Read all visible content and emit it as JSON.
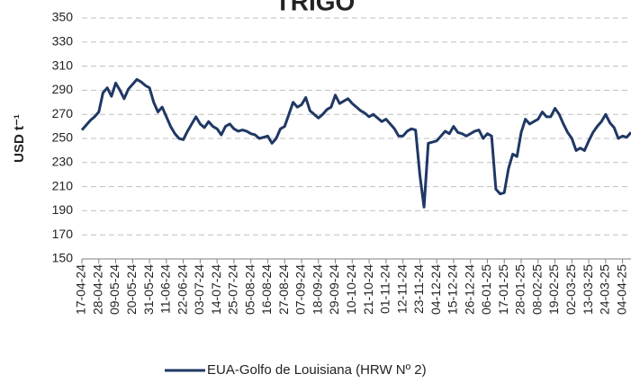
{
  "chart_data": {
    "type": "line",
    "title": "TRIGO",
    "ylabel": "USD t⁻¹",
    "categories": [
      "17-04-24",
      null,
      null,
      null,
      "28-04-24",
      null,
      null,
      null,
      "09-05-24",
      null,
      null,
      null,
      "20-05-24",
      null,
      null,
      null,
      "31-05-24",
      null,
      null,
      null,
      "11-06-24",
      null,
      null,
      null,
      "22-06-24",
      null,
      null,
      null,
      "03-07-24",
      null,
      null,
      null,
      "14-07-24",
      null,
      null,
      null,
      "25-07-24",
      null,
      null,
      null,
      "05-08-24",
      null,
      null,
      null,
      "16-08-24",
      null,
      null,
      null,
      "27-08-24",
      null,
      null,
      null,
      "07-09-24",
      null,
      null,
      null,
      "18-09-24",
      null,
      null,
      null,
      "29-09-24",
      null,
      null,
      null,
      "10-10-24",
      null,
      null,
      null,
      "21-10-24",
      null,
      null,
      null,
      "01-11-24",
      null,
      null,
      null,
      "12-11-24",
      null,
      null,
      null,
      "23-11-24",
      null,
      null,
      null,
      "04-12-24",
      null,
      null,
      null,
      "15-12-24",
      null,
      null,
      null,
      "26-12-24",
      null,
      null,
      null,
      "06-01-25",
      null,
      null,
      null,
      "17-01-25",
      null,
      null,
      null,
      "28-01-25",
      null,
      null,
      null,
      "08-02-25",
      null,
      null,
      null,
      "19-02-25",
      null,
      null,
      null,
      "02-03-25",
      null,
      null,
      null,
      "13-03-25",
      null,
      null,
      null,
      "24-03-25",
      null,
      null,
      null,
      "04-04-25",
      null,
      null
    ],
    "series": [
      {
        "name": "EUA-Golfo de Louisiana (HRW Nº 2)",
        "color": "#1f3864",
        "values": [
          257,
          261,
          265,
          268,
          272,
          288,
          292,
          285,
          296,
          290,
          283,
          291,
          295,
          299,
          297,
          294,
          292,
          280,
          272,
          276,
          268,
          260,
          254,
          250,
          249,
          256,
          262,
          268,
          262,
          259,
          264,
          260,
          258,
          253,
          260,
          262,
          258,
          256,
          257,
          256,
          254,
          253,
          250,
          251,
          252,
          246,
          250,
          258,
          260,
          270,
          280,
          276,
          278,
          284,
          273,
          270,
          267,
          270,
          274,
          276,
          286,
          279,
          281,
          283,
          279,
          276,
          273,
          271,
          268,
          270,
          267,
          264,
          266,
          262,
          258,
          252,
          252,
          256,
          258,
          257,
          220,
          193,
          246,
          247,
          248,
          252,
          256,
          254,
          260,
          255,
          254,
          252,
          254,
          256,
          257,
          250,
          254,
          252,
          208,
          204,
          205,
          225,
          237,
          235,
          255,
          266,
          262,
          264,
          266,
          272,
          268,
          268,
          275,
          270,
          262,
          255,
          250,
          240,
          242,
          240,
          248,
          255,
          260,
          264,
          270,
          263,
          259,
          250,
          252,
          251,
          255
        ]
      }
    ],
    "ylim": [
      150,
      350
    ],
    "yticks": [
      150,
      170,
      190,
      210,
      230,
      250,
      270,
      290,
      310,
      330,
      350
    ],
    "grid": true,
    "legend": "bottom"
  }
}
